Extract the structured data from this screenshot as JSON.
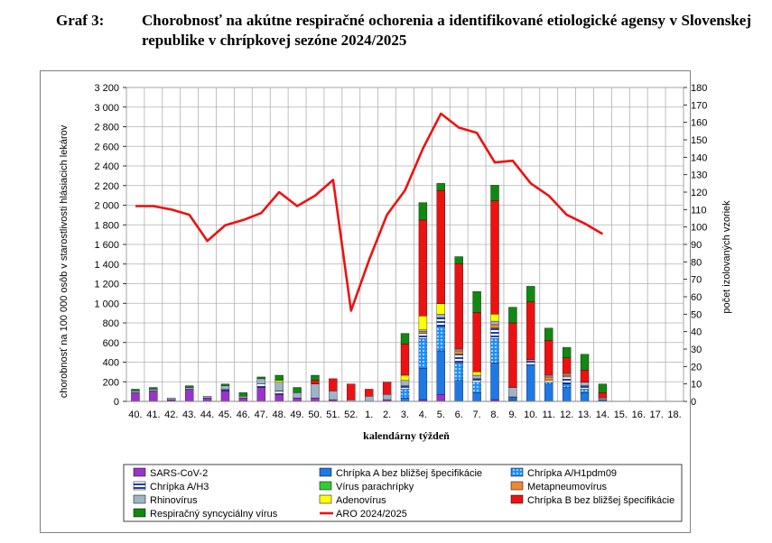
{
  "caption": {
    "label": "Graf 3:",
    "text": "Chorobnosť na akútne respiračné ochorenia a identifikované etiologické agensy v Slovenskej republike v chrípkovej sezóne 2024/2025"
  },
  "chart_data": {
    "type": "bar",
    "stacked": true,
    "categories": [
      "40.",
      "41.",
      "42.",
      "43.",
      "44.",
      "45.",
      "46.",
      "47.",
      "48.",
      "49.",
      "50.",
      "51.",
      "52.",
      "1.",
      "2.",
      "3.",
      "4.",
      "5.",
      "6.",
      "7.",
      "8.",
      "9.",
      "10.",
      "11.",
      "12.",
      "13.",
      "14.",
      "15.",
      "16.",
      "17.",
      "18."
    ],
    "xlabel": "kalendárny týždeň",
    "ylabel_left": "chorobnosť na 100 000 osôb v starostlivosti hlásiacich lekárov",
    "ylabel_right": "počet izolovaných vzoriek",
    "ylim_right": [
      0,
      180
    ],
    "yticks_right": [
      "0",
      "10",
      "20",
      "30",
      "40",
      "50",
      "60",
      "70",
      "80",
      "90",
      "100",
      "110",
      "120",
      "130",
      "140",
      "150",
      "160",
      "170",
      "180"
    ],
    "yticks_left": [
      "0",
      "200",
      "400",
      "600",
      "800",
      "1 000",
      "1 200",
      "1 400",
      "1 600",
      "1 800",
      "2 000",
      "2 200",
      "2 400",
      "2 600",
      "2 800",
      "3 000",
      "3 200"
    ],
    "grid": true,
    "legend_position": "bottom",
    "series": [
      {
        "name": "SARS-CoV-2",
        "color": "#9933cc",
        "pattern": "solid",
        "values": [
          5,
          6,
          1,
          7,
          2,
          6,
          2,
          8,
          4,
          2,
          2,
          1,
          0,
          0,
          1,
          0,
          1,
          4,
          0,
          0,
          1,
          0,
          0,
          0,
          0,
          0,
          0,
          0,
          0,
          0,
          0
        ]
      },
      {
        "name": "Chrípka A bez bližšej špecifikácie",
        "color": "#1f78e6",
        "pattern": "solid",
        "values": [
          0,
          0,
          0,
          0,
          0,
          0,
          0,
          0,
          0,
          0,
          0,
          0,
          0,
          0,
          0,
          2,
          18,
          25,
          12,
          5,
          21,
          1,
          21,
          10,
          8,
          5,
          1,
          0,
          0,
          0,
          0
        ]
      },
      {
        "name": "Chrípka A/H1pdm09",
        "color": "#1e90ff",
        "pattern": "dots",
        "values": [
          0,
          0,
          0,
          0,
          0,
          0,
          0,
          0,
          0,
          0,
          0,
          0,
          0,
          0,
          0,
          5,
          17,
          14,
          10,
          6,
          14,
          1,
          0,
          1,
          2,
          2,
          0,
          0,
          0,
          0,
          0
        ]
      },
      {
        "name": "Chrípka A/H3",
        "color": "#1f3fa8",
        "pattern": "hstripes",
        "values": [
          0,
          0,
          0,
          0,
          0,
          1,
          0,
          2,
          2,
          0,
          0,
          0,
          0,
          0,
          0,
          2,
          3,
          5,
          5,
          2,
          6,
          1,
          2,
          1,
          4,
          2,
          0,
          0,
          0,
          0,
          0
        ]
      },
      {
        "name": "Vírus parachrípky",
        "color": "#33cc33",
        "pattern": "solid",
        "values": [
          0,
          0,
          0,
          0,
          0,
          0,
          0,
          0,
          0,
          0,
          0,
          0,
          0,
          0,
          0,
          0,
          0,
          0,
          0,
          0,
          0,
          0,
          0,
          0,
          0,
          0,
          0,
          0,
          0,
          0,
          0
        ]
      },
      {
        "name": "Metapneumovírus",
        "color": "#ee8833",
        "pattern": "solid",
        "values": [
          0,
          0,
          0,
          0,
          0,
          0,
          0,
          0,
          0,
          0,
          0,
          0,
          0,
          0,
          0,
          0,
          1,
          0,
          2,
          0,
          2,
          0,
          0,
          2,
          1,
          0,
          0,
          0,
          0,
          0,
          0
        ]
      },
      {
        "name": "Rhinovírus",
        "color": "#9fb3c9",
        "pattern": "solid",
        "values": [
          1,
          1,
          1,
          1,
          1,
          2,
          1,
          3,
          5,
          3,
          8,
          5,
          1,
          3,
          3,
          3,
          1,
          2,
          1,
          2,
          2,
          5,
          1,
          1,
          1,
          2,
          1,
          0,
          0,
          0,
          0
        ]
      },
      {
        "name": "Adenovírus",
        "color": "#ffff00",
        "pattern": "solid",
        "values": [
          0,
          0,
          0,
          0,
          0,
          0,
          0,
          0,
          1,
          0,
          0,
          0,
          0,
          0,
          0,
          3,
          8,
          6,
          0,
          2,
          4,
          0,
          0,
          0,
          0,
          0,
          0,
          0,
          0,
          0,
          0
        ]
      },
      {
        "name": "Chrípka B bez bližšej špecifikácie",
        "color": "#ee1111",
        "pattern": "solid",
        "values": [
          0,
          0,
          0,
          0,
          0,
          0,
          0,
          0,
          0,
          0,
          2,
          7,
          9,
          4,
          7,
          18,
          55,
          65,
          49,
          34,
          65,
          37,
          33,
          20,
          9,
          7,
          3,
          0,
          0,
          0,
          0
        ]
      },
      {
        "name": "Respiračný syncyciálny vírus",
        "color": "#118811",
        "pattern": "solid",
        "values": [
          1,
          1,
          0,
          1,
          0,
          1,
          2,
          1,
          3,
          3,
          3,
          0,
          0,
          0,
          0,
          6,
          10,
          4,
          4,
          12,
          9,
          9,
          9,
          7,
          6,
          9,
          5,
          0,
          0,
          0,
          0
        ]
      }
    ],
    "line": {
      "name": "ARO 2024/2025",
      "color": "#ee1111",
      "axis": "right",
      "values": [
        112,
        112,
        110,
        107,
        92,
        101,
        104,
        108,
        120,
        112,
        118,
        127,
        52,
        81,
        107,
        121,
        145,
        165,
        157,
        154,
        137,
        138,
        125,
        118,
        107,
        102,
        96
      ]
    }
  }
}
